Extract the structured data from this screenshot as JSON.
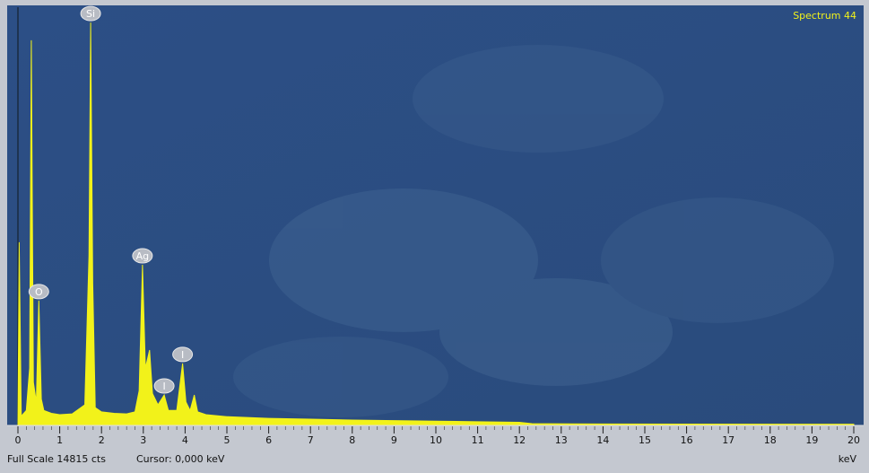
{
  "chart_data": {
    "type": "area",
    "title": "Spectrum 44",
    "x_label": "keV",
    "full_scale_label": "Full Scale 14815 cts",
    "cursor_label": "Cursor: 0,000 keV",
    "color": "#f2f21a",
    "x": [
      0,
      0.03,
      0.08,
      0.2,
      0.28,
      0.32,
      0.37,
      0.44,
      0.5,
      0.56,
      0.62,
      0.8,
      1.0,
      1.3,
      1.6,
      1.7,
      1.74,
      1.79,
      1.85,
      2.0,
      2.3,
      2.6,
      2.8,
      2.9,
      2.98,
      3.05,
      3.15,
      3.22,
      3.35,
      3.5,
      3.6,
      3.8,
      3.94,
      4.02,
      4.12,
      4.22,
      4.3,
      4.5,
      5,
      6,
      7,
      8,
      9,
      10,
      11,
      12,
      12.3,
      14,
      20
    ],
    "values": [
      0,
      6470,
      300,
      500,
      2000,
      13640,
      1500,
      800,
      4400,
      900,
      500,
      400,
      350,
      380,
      700,
      6000,
      14270,
      5000,
      600,
      450,
      400,
      380,
      450,
      1200,
      5670,
      2000,
      2645,
      1100,
      700,
      1050,
      500,
      500,
      2170,
      800,
      500,
      1050,
      450,
      350,
      280,
      220,
      190,
      160,
      140,
      120,
      100,
      80,
      30,
      20,
      10
    ],
    "xlim": [
      0,
      20
    ],
    "ylim": [
      0,
      14815
    ],
    "xticks": [
      0,
      1,
      2,
      3,
      4,
      5,
      6,
      7,
      8,
      9,
      10,
      11,
      12,
      13,
      14,
      15,
      16,
      17,
      18,
      19,
      20
    ],
    "peak_labels": [
      {
        "label": "O",
        "x": 0.5
      },
      {
        "label": "Si",
        "x": 1.74
      },
      {
        "label": "Ag",
        "x": 2.98
      },
      {
        "label": "I",
        "x": 3.5
      },
      {
        "label": "I",
        "x": 3.94
      }
    ]
  }
}
